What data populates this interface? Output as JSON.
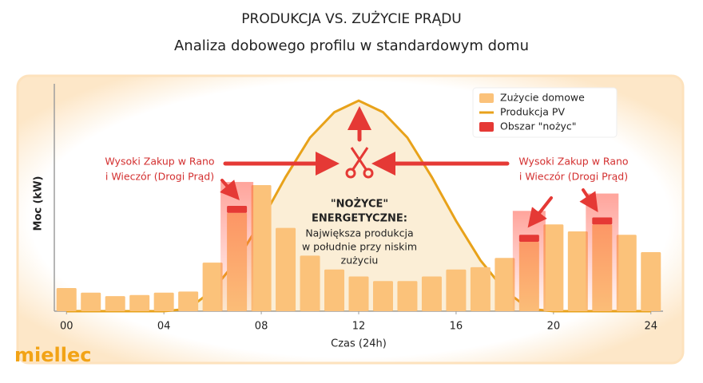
{
  "title": "PRODUKCJA VS. ZUŻYCIE PRĄDU",
  "subtitle": "Analiza dobowego profilu w standardowym domu",
  "brand": "miellec",
  "chart_data": {
    "type": "bar",
    "x": [
      0,
      1,
      2,
      3,
      4,
      5,
      6,
      7,
      8,
      9,
      10,
      11,
      12,
      13,
      14,
      15,
      16,
      17,
      18,
      19,
      20,
      21,
      22,
      23,
      24
    ],
    "xlim": [
      -0.5,
      24.5
    ],
    "xticks": [
      {
        "value": 0,
        "label": "00"
      },
      {
        "value": 4,
        "label": "04"
      },
      {
        "value": 8,
        "label": "08"
      },
      12,
      16,
      20,
      24
    ],
    "ylim": [
      0,
      10
    ],
    "x_label": "Czas (24h)",
    "y_label": "Moc (kW)",
    "legend": "upper right",
    "series": [
      {
        "name": "Zużycie domowe",
        "type": "bar",
        "color": "#fbc27a",
        "values": [
          1.0,
          0.8,
          0.65,
          0.7,
          0.8,
          0.85,
          2.1,
          4.25,
          5.45,
          3.6,
          2.4,
          1.8,
          1.5,
          1.3,
          1.3,
          1.5,
          1.8,
          1.9,
          2.3,
          3.0,
          3.75,
          3.45,
          3.75,
          3.3,
          2.55
        ]
      },
      {
        "name": "Produkcja PV",
        "type": "line",
        "color": "#e8a21a",
        "values": [
          0,
          0,
          0,
          0,
          0,
          0.1,
          0.9,
          2.2,
          3.9,
          5.8,
          7.5,
          8.6,
          9.1,
          8.6,
          7.5,
          5.8,
          3.9,
          2.2,
          0.9,
          0.1,
          0,
          0,
          0,
          0,
          0
        ]
      },
      {
        "name": "Obszar \"nożyc\"",
        "type": "bar",
        "stacked": true,
        "color": "#e53935",
        "values": [
          null,
          null,
          null,
          null,
          null,
          null,
          null,
          0.3,
          null,
          null,
          null,
          null,
          null,
          null,
          null,
          null,
          null,
          null,
          null,
          0.3,
          null,
          null,
          0.3,
          null,
          null
        ]
      }
    ],
    "annotations": {
      "left": [
        "Wysoki Zakup w Rano",
        "i Wieczór (Drogi Prąd)"
      ],
      "right": [
        "Wysoki Zakup w Rano",
        "i Wieczór (Drogi Prąd)"
      ],
      "center_heading": [
        "\"NOŻYCE\"",
        "ENERGETYCZNE:"
      ],
      "center_text": [
        "Największa produkcja",
        "w południe przy niskim",
        "zużyciu"
      ]
    }
  }
}
